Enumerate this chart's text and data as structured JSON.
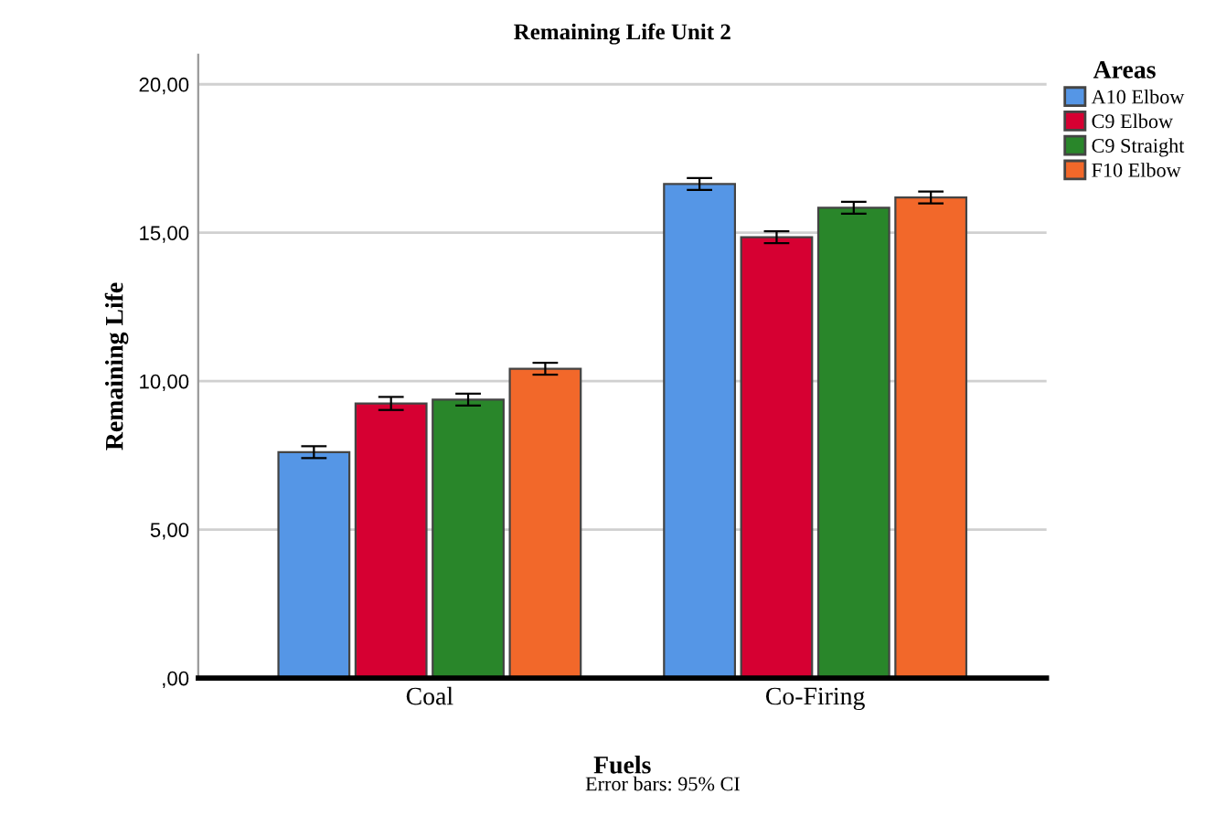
{
  "chart_data": {
    "type": "bar",
    "title": "Remaining Life Unit 2",
    "xlabel": "Fuels",
    "ylabel": "Remaining Life",
    "legend_title": "Areas",
    "categories": [
      "Coal",
      "Co-Firing"
    ],
    "series": [
      {
        "name": "A10 Elbow",
        "color": "#5596e6",
        "values": [
          7.61,
          16.64
        ],
        "errors": [
          0.2,
          0.2
        ]
      },
      {
        "name": "C9 Elbow",
        "color": "#d60032",
        "values": [
          9.25,
          14.85
        ],
        "errors": [
          0.22,
          0.2
        ]
      },
      {
        "name": "C9 Straight",
        "color": "#29862a",
        "values": [
          9.38,
          15.84
        ],
        "errors": [
          0.2,
          0.2
        ]
      },
      {
        "name": "F10 Elbow",
        "color": "#f2682a",
        "values": [
          10.42,
          16.19
        ],
        "errors": [
          0.2,
          0.2
        ]
      }
    ],
    "ylim": [
      0,
      21
    ],
    "yticks": [
      {
        "value": 0,
        "label": ",00"
      },
      {
        "value": 5,
        "label": "5,00"
      },
      {
        "value": 10,
        "label": "10,00"
      },
      {
        "value": 15,
        "label": "15,00"
      },
      {
        "value": 20,
        "label": "20,00"
      }
    ],
    "grid": "y",
    "legend": "top right",
    "annotations": [
      "Error bars: 95% CI"
    ]
  }
}
